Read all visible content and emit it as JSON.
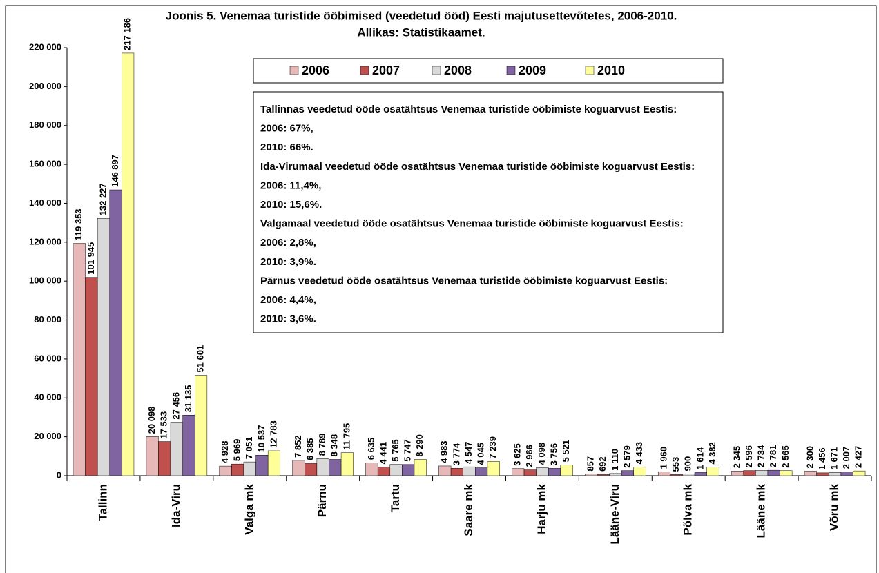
{
  "chart_data": {
    "type": "bar",
    "title": "Joonis 5. Venemaa turistide ööbimised (veedetud ööd) Eesti majutusettevõtetes, 2006-2010.",
    "subtitle": "Allikas: Statistikaamet.",
    "categories": [
      "Tallinn",
      "Ida-Viru",
      "Valga mk",
      "Pärnu",
      "Tartu",
      "Saare mk",
      "Harju mk",
      "Lääne-Viru",
      "Põlva mk",
      "Lääne mk",
      "Võru mk"
    ],
    "series": [
      {
        "name": "2006",
        "color": "#e6b9b8",
        "values": [
          119353,
          20098,
          4928,
          7852,
          6635,
          4983,
          3625,
          857,
          1960,
          2345,
          2300
        ],
        "value_labels": [
          "119 353",
          "20 098",
          "4 928",
          "7 852",
          "6 635",
          "4 983",
          "3 625",
          "857",
          "1 960",
          "2 345",
          "2 300"
        ]
      },
      {
        "name": "2007",
        "color": "#c0504d",
        "values": [
          101945,
          17533,
          5969,
          6385,
          4441,
          3774,
          2966,
          692,
          553,
          2596,
          1456
        ],
        "value_labels": [
          "101 945",
          "17 533",
          "5 969",
          "6 385",
          "4 441",
          "3 774",
          "2 966",
          "692",
          "553",
          "2 596",
          "1 456"
        ]
      },
      {
        "name": "2008",
        "color": "#d9d9d9",
        "values": [
          132227,
          27456,
          7051,
          8789,
          5765,
          4547,
          4098,
          1110,
          900,
          2734,
          1671
        ],
        "value_labels": [
          "132 227",
          "27 456",
          "7 051",
          "8 789",
          "5 765",
          "4 547",
          "4 098",
          "1 110",
          "900",
          "2 734",
          "1 671"
        ]
      },
      {
        "name": "2009",
        "color": "#8064a2",
        "values": [
          146897,
          31135,
          10537,
          8348,
          5747,
          4045,
          3756,
          2579,
          1614,
          2781,
          2007
        ],
        "value_labels": [
          "146 897",
          "31 135",
          "10 537",
          "8 348",
          "5 747",
          "4 045",
          "3 756",
          "2 579",
          "1 614",
          "2 781",
          "2 007"
        ]
      },
      {
        "name": "2010",
        "color": "#ffff99",
        "values": [
          217186,
          51601,
          12783,
          11795,
          8290,
          7239,
          5521,
          4433,
          4382,
          2565,
          2427
        ],
        "value_labels": [
          "217 186",
          "51 601",
          "12 783",
          "11 795",
          "8 290",
          "7 239",
          "5 521",
          "4 433",
          "4 382",
          "2 565",
          "2 427"
        ]
      }
    ],
    "ylim": [
      0,
      220000
    ],
    "yticks": [
      0,
      {
        "value": 20000,
        "label": "20 000"
      },
      {
        "value": 40000,
        "label": "40 000"
      },
      {
        "value": 60000,
        "label": "60 000"
      },
      {
        "value": 80000,
        "label": "80 000"
      },
      {
        "value": 100000,
        "label": "100 000"
      },
      {
        "value": 120000,
        "label": "120 000"
      },
      {
        "value": 140000,
        "label": "140 000"
      },
      {
        "value": 160000,
        "label": "160 000"
      },
      {
        "value": 180000,
        "label": "180 000"
      },
      {
        "value": 200000,
        "label": "200 000"
      },
      {
        "value": 220000,
        "label": "220 000"
      }
    ],
    "grid": false,
    "legend": "top",
    "annotations": [
      "Tallinnas veedetud ööde osatähtsus Venemaa turistide ööbimiste koguarvust Eestis:",
      "2006:  67%,",
      "2010:  66%.",
      "Ida-Virumaal veedetud ööde osatähtsus Venemaa turistide ööbimiste koguarvust Eestis:",
      "2006:  11,4%,",
      "2010:  15,6%.",
      "Valgamaal veedetud ööde osatähtsus Venemaa turistide ööbimiste koguarvust Eestis:",
      "2006:  2,8%,",
      "2010:  3,9%.",
      "Pärnus veedetud ööde osatähtsus Venemaa turistide ööbimiste koguarvust Eestis:",
      "2006:  4,4%,",
      "2010:  3,6%."
    ]
  }
}
